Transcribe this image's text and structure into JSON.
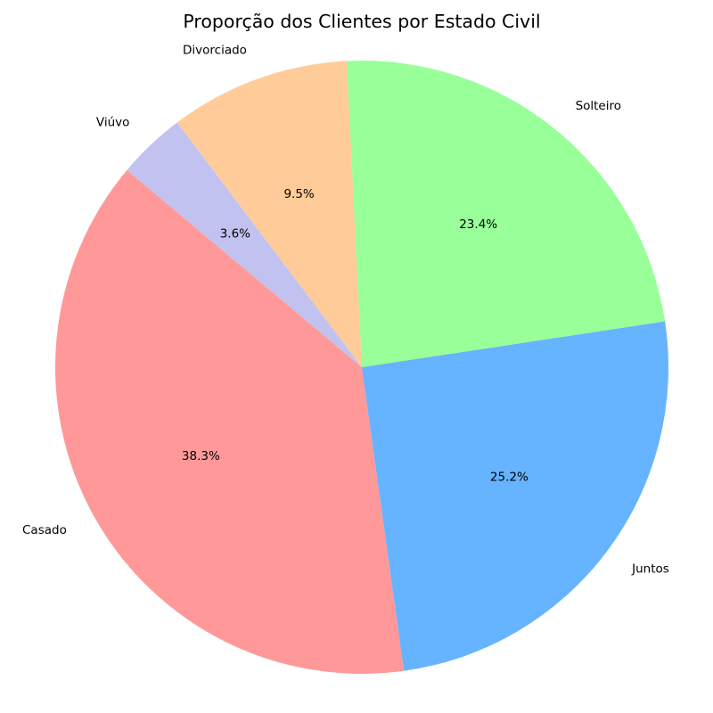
{
  "chart_data": {
    "type": "pie",
    "title": "Proporção dos Clientes por Estado Civil",
    "slices": [
      {
        "label": "Casado",
        "value": 38.3,
        "pct_label": "38.3%",
        "color": "#ff9999"
      },
      {
        "label": "Juntos",
        "value": 25.2,
        "pct_label": "25.2%",
        "color": "#66b3ff"
      },
      {
        "label": "Solteiro",
        "value": 23.4,
        "pct_label": "23.4%",
        "color": "#99ff99"
      },
      {
        "label": "Divorciado",
        "value": 9.5,
        "pct_label": "9.5%",
        "color": "#ffcc99"
      },
      {
        "label": "Viúvo",
        "value": 3.6,
        "pct_label": "3.6%",
        "color": "#c2c2f0"
      }
    ],
    "start_angle_deg": 140,
    "direction": "counterclockwise",
    "legend": "none"
  }
}
